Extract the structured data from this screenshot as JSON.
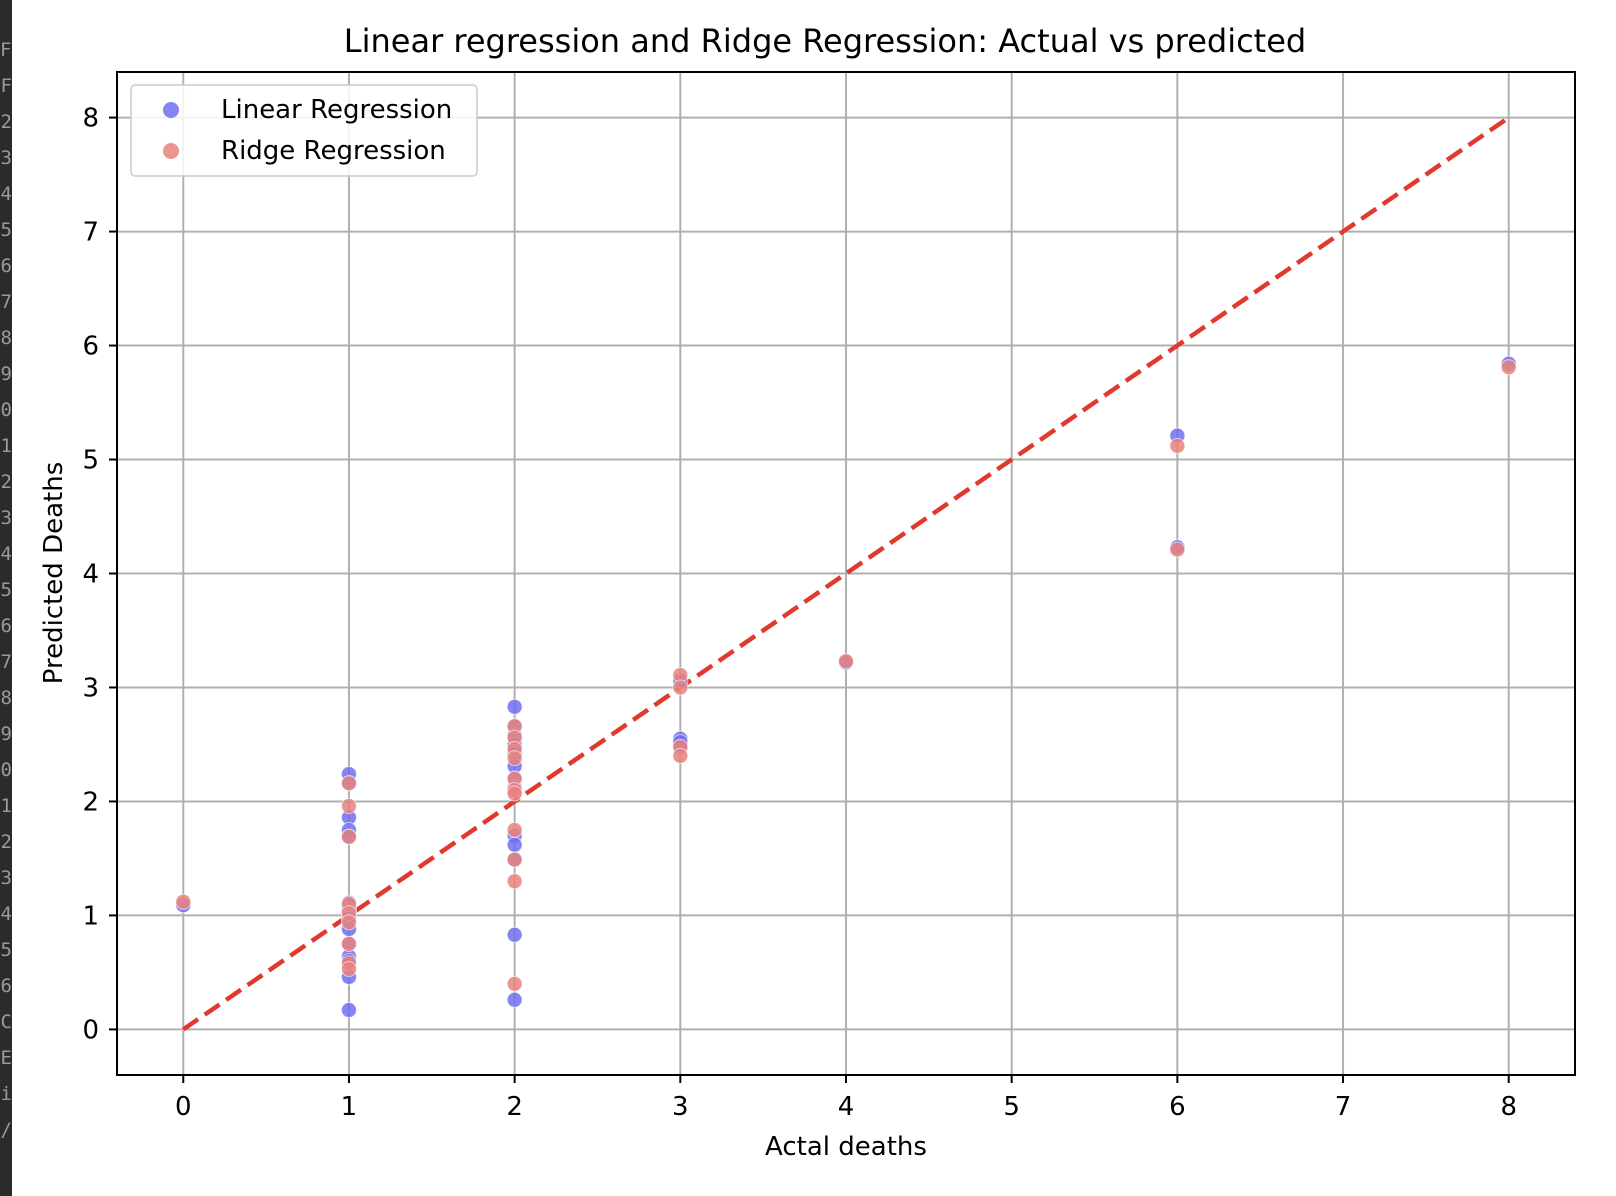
{
  "editor_gutter": {
    "line_fragments": [
      "Fi",
      "F",
      "2",
      "3",
      "4",
      "5",
      "6",
      "7",
      "8",
      "9",
      "0",
      "1",
      "2",
      "3",
      "4",
      "5",
      "6",
      "7",
      "8",
      "9",
      "0",
      "1",
      "2",
      "3",
      "4",
      "5",
      "6",
      "C",
      "E",
      "i",
      "/"
    ]
  },
  "chart_data": {
    "type": "scatter",
    "title": "Linear regression and Ridge Regression: Actual vs predicted",
    "xlabel": "Actal deaths",
    "ylabel": "Predicted Deaths",
    "xlim": [
      -0.4,
      8.4
    ],
    "ylim": [
      -0.4,
      8.4
    ],
    "xticks": [
      0,
      1,
      2,
      3,
      4,
      5,
      6,
      7,
      8
    ],
    "yticks": [
      0,
      1,
      2,
      3,
      4,
      5,
      6,
      7,
      8
    ],
    "grid": true,
    "legend_position": "top-left",
    "reference_line": {
      "style": "dashed",
      "color": "#e03a2f",
      "points": [
        [
          0,
          0
        ],
        [
          8,
          8
        ]
      ]
    },
    "series": [
      {
        "name": "Linear Regression",
        "color": "#6f6ff0",
        "points": [
          [
            0,
            1.09
          ],
          [
            1,
            2.24
          ],
          [
            1,
            2.16
          ],
          [
            1,
            1.86
          ],
          [
            1,
            1.75
          ],
          [
            1,
            1.69
          ],
          [
            1,
            1.11
          ],
          [
            1,
            1.05
          ],
          [
            1,
            0.98
          ],
          [
            1,
            0.88
          ],
          [
            1,
            0.75
          ],
          [
            1,
            0.64
          ],
          [
            1,
            0.6
          ],
          [
            1,
            0.46
          ],
          [
            1,
            0.17
          ],
          [
            2,
            2.83
          ],
          [
            2,
            2.66
          ],
          [
            2,
            2.58
          ],
          [
            2,
            2.5
          ],
          [
            2,
            2.42
          ],
          [
            2,
            2.31
          ],
          [
            2,
            2.2
          ],
          [
            2,
            2.12
          ],
          [
            2,
            1.7
          ],
          [
            2,
            1.62
          ],
          [
            2,
            1.49
          ],
          [
            2,
            0.83
          ],
          [
            2,
            0.26
          ],
          [
            3,
            3.06
          ],
          [
            3,
            2.55
          ],
          [
            3,
            2.52
          ],
          [
            3,
            2.47
          ],
          [
            4,
            3.22
          ],
          [
            6,
            5.21
          ],
          [
            6,
            4.23
          ],
          [
            8,
            5.84
          ]
        ]
      },
      {
        "name": "Ridge Regression",
        "color": "#e8827c",
        "points": [
          [
            0,
            1.12
          ],
          [
            1,
            2.16
          ],
          [
            1,
            1.96
          ],
          [
            1,
            1.69
          ],
          [
            1,
            1.1
          ],
          [
            1,
            1.02
          ],
          [
            1,
            0.94
          ],
          [
            1,
            0.75
          ],
          [
            1,
            0.58
          ],
          [
            1,
            0.53
          ],
          [
            2,
            2.66
          ],
          [
            2,
            2.56
          ],
          [
            2,
            2.46
          ],
          [
            2,
            2.38
          ],
          [
            2,
            2.2
          ],
          [
            2,
            2.1
          ],
          [
            2,
            2.07
          ],
          [
            2,
            1.75
          ],
          [
            2,
            1.49
          ],
          [
            2,
            1.3
          ],
          [
            2,
            0.4
          ],
          [
            3,
            3.11
          ],
          [
            3,
            3.0
          ],
          [
            3,
            2.48
          ],
          [
            3,
            2.4
          ],
          [
            4,
            3.23
          ],
          [
            6,
            5.12
          ],
          [
            6,
            4.21
          ],
          [
            8,
            5.81
          ]
        ]
      }
    ]
  }
}
